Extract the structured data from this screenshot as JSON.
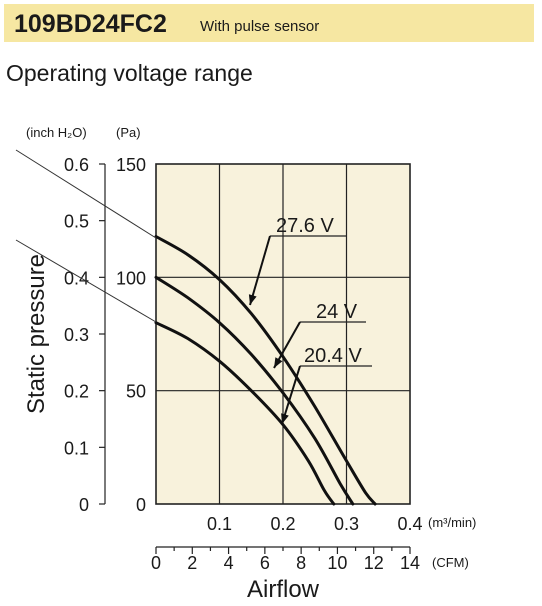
{
  "header": {
    "model": "109BD24FC2",
    "model_note": "With pulse sensor",
    "subtitle": "Operating voltage range"
  },
  "chart_data": {
    "type": "line",
    "title": "Operating voltage range",
    "ylabel": "Static pressure",
    "xlabel": "Airflow",
    "y_unit_left": "(inch H₂O)",
    "y_unit_right": "(Pa)",
    "x_unit_top": "(m³/min)",
    "x_unit_bottom": "(CFM)",
    "xlim": [
      0,
      0.4
    ],
    "ylim": [
      0,
      150
    ],
    "grid": true,
    "background": "#f8f2dc",
    "pa_ticks": [
      "0",
      "50",
      "100",
      "150"
    ],
    "inch_ticks": [
      "0",
      "0.1",
      "0.2",
      "0.3",
      "0.4",
      "0.5",
      "0.6"
    ],
    "m3_ticks": [
      "0.1",
      "0.2",
      "0.3",
      "0.4"
    ],
    "cfm_ticks": [
      "0",
      "2",
      "4",
      "6",
      "8",
      "10",
      "12",
      "14"
    ],
    "series": [
      {
        "name": "27.6 V",
        "x": [
          0,
          0.05,
          0.1,
          0.15,
          0.2,
          0.25,
          0.3,
          0.33,
          0.345
        ],
        "y": [
          118,
          110,
          99,
          84,
          65,
          43,
          19,
          5,
          0
        ]
      },
      {
        "name": "24 V",
        "x": [
          0,
          0.05,
          0.1,
          0.15,
          0.2,
          0.25,
          0.29,
          0.31
        ],
        "y": [
          100,
          91,
          80,
          66,
          49,
          29,
          9,
          0
        ]
      },
      {
        "name": "20.4 V",
        "x": [
          0,
          0.05,
          0.1,
          0.15,
          0.2,
          0.24,
          0.265,
          0.28
        ],
        "y": [
          80,
          73,
          63,
          50,
          35,
          19,
          6,
          0
        ]
      }
    ],
    "labels": [
      "27.6 V",
      "24 V",
      "20.4 V"
    ]
  }
}
